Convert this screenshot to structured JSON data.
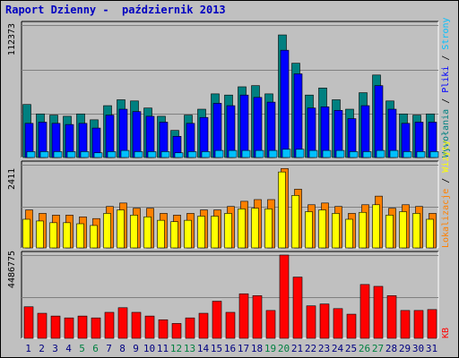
{
  "title": "Raport Dzienny -  październik 2013",
  "colors": {
    "background": "#c0c0c0",
    "plot_bg": "#c0c0c0",
    "hits": "#008080",
    "files": "#0000ff",
    "pages": "#00c0ff",
    "sites": "#ff8000",
    "visits": "#ffff00",
    "kbytes": "#ff0000",
    "weekend_label": "#008040",
    "day_label": "#000080"
  },
  "chart_data": [
    {
      "type": "bar",
      "panel": "hits-files-pages",
      "ytick_label": "112373",
      "ylim": [
        0,
        112373
      ],
      "legend": [
        {
          "text": "Wywołania",
          "color": "#008080"
        },
        {
          "text": "Pliki",
          "color": "#0000ff"
        },
        {
          "text": "Strony",
          "color": "#00c0ff"
        }
      ],
      "legend_separator": " / ",
      "categories": [
        "1",
        "2",
        "3",
        "4",
        "5",
        "6",
        "7",
        "8",
        "9",
        "10",
        "11",
        "12",
        "13",
        "14",
        "15",
        "16",
        "17",
        "18",
        "19",
        "20",
        "21",
        "22",
        "23",
        "24",
        "25",
        "26",
        "27",
        "28",
        "29",
        "30",
        "31"
      ],
      "weekend_days": [
        5,
        6,
        12,
        13,
        19,
        20,
        26,
        27
      ],
      "series": [
        {
          "name": "Wywołania",
          "values": [
            45000,
            37000,
            36000,
            35000,
            37000,
            32000,
            44000,
            49000,
            48000,
            42000,
            35000,
            23000,
            36000,
            41000,
            54000,
            53000,
            60000,
            61000,
            54000,
            104000,
            80000,
            53000,
            59000,
            49000,
            41000,
            55000,
            70000,
            48000,
            37000,
            36000,
            37000
          ]
        },
        {
          "name": "Pliki",
          "values": [
            29000,
            30000,
            29000,
            28000,
            29000,
            25000,
            36000,
            41000,
            39000,
            35000,
            30000,
            18000,
            29000,
            34000,
            46000,
            44000,
            53000,
            51000,
            47000,
            91000,
            71000,
            42000,
            43000,
            40000,
            33000,
            44000,
            61000,
            41000,
            29000,
            30000,
            30000
          ]
        },
        {
          "name": "Strony",
          "values": [
            5000,
            5000,
            5000,
            5000,
            5000,
            4000,
            5000,
            6000,
            5000,
            5000,
            5000,
            4000,
            5000,
            5000,
            6000,
            6000,
            6000,
            6000,
            6000,
            7000,
            7000,
            6000,
            6000,
            6000,
            5000,
            5000,
            6000,
            6000,
            5000,
            5000,
            5000
          ]
        }
      ]
    },
    {
      "type": "bar",
      "panel": "sites-visits",
      "ytick_label": "2411",
      "ylim": [
        0,
        2411
      ],
      "legend": [
        {
          "text": "Lokalizacje",
          "color": "#ff8000"
        },
        {
          "text": "Wizyty",
          "color": "#ffff00"
        }
      ],
      "legend_separator": " / ",
      "series": [
        {
          "name": "Lokalizacje",
          "values": [
            1100,
            1000,
            950,
            950,
            900,
            850,
            1200,
            1300,
            1150,
            1150,
            1000,
            950,
            1000,
            1100,
            1100,
            1200,
            1350,
            1400,
            1400,
            2300,
            1700,
            1250,
            1300,
            1200,
            1000,
            1250,
            1500,
            1150,
            1250,
            1200,
            1000
          ]
        },
        {
          "name": "Wizyty",
          "values": [
            830,
            780,
            730,
            730,
            700,
            650,
            1000,
            1100,
            950,
            900,
            800,
            760,
            800,
            920,
            920,
            1000,
            1130,
            1150,
            1130,
            2200,
            1520,
            1050,
            1100,
            1000,
            830,
            1030,
            1250,
            950,
            1050,
            1000,
            830
          ]
        }
      ]
    },
    {
      "type": "bar",
      "panel": "kbytes",
      "ytick_label": "4486775",
      "ylim": [
        0,
        4486775
      ],
      "legend": [
        {
          "text": "KB",
          "color": "#ff0000"
        }
      ],
      "series": [
        {
          "name": "KB",
          "values": [
            1700000,
            1350000,
            1200000,
            1100000,
            1200000,
            1100000,
            1400000,
            1650000,
            1400000,
            1200000,
            1000000,
            800000,
            1100000,
            1350000,
            2000000,
            1400000,
            2400000,
            2300000,
            1500000,
            4486775,
            3300000,
            1750000,
            1850000,
            1600000,
            1300000,
            2900000,
            2800000,
            2300000,
            1500000,
            1500000,
            1550000
          ]
        }
      ]
    }
  ]
}
